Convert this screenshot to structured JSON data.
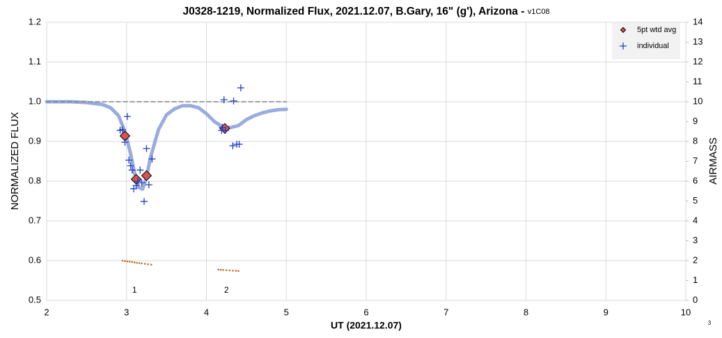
{
  "chart_data": {
    "type": "scatter",
    "title": "J0328-1219, Normalized Flux, 2021.12.07, B.Gary, 16\" (g'), Arizona - ",
    "version": "v1C08",
    "x_label": "UT (2021.12.07)",
    "y_label": "NORMALIZED FLUX",
    "y2_label": "AIRMASS",
    "footnote": "3",
    "xlim": [
      2,
      10
    ],
    "xticks": [
      2,
      3,
      4,
      5,
      6,
      7,
      8,
      9,
      10
    ],
    "ylim": [
      0.5,
      1.2
    ],
    "yticks": [
      0.5,
      0.6,
      0.7,
      0.8,
      0.9,
      {
        "value": 1,
        "label": "1.0"
      },
      1.1,
      1.2
    ],
    "y2lim": [
      0,
      14
    ],
    "y2ticks": [
      0,
      1,
      2,
      3,
      4,
      5,
      6,
      7,
      8,
      9,
      10,
      11,
      12,
      13,
      14
    ],
    "grid": true,
    "legend": "top-right",
    "series": [
      {
        "style": "line",
        "color": "#8ea3dd",
        "x": [
          2.0,
          2.3,
          2.5,
          2.7,
          2.8,
          2.9,
          2.95,
          3.0,
          3.05,
          3.1,
          3.15,
          3.2,
          3.25,
          3.3,
          3.4,
          3.5,
          3.6,
          3.7,
          3.8,
          3.9,
          4.0,
          4.1,
          4.2,
          4.3,
          4.4,
          4.5,
          4.6,
          4.7,
          4.8,
          4.9,
          5.0
        ],
        "values": [
          1.0,
          1.0,
          0.998,
          0.993,
          0.985,
          0.965,
          0.94,
          0.91,
          0.87,
          0.82,
          0.785,
          0.78,
          0.81,
          0.86,
          0.93,
          0.967,
          0.982,
          0.99,
          0.99,
          0.985,
          0.97,
          0.95,
          0.937,
          0.935,
          0.94,
          0.955,
          0.965,
          0.972,
          0.977,
          0.98,
          0.981
        ]
      },
      {
        "style": "dashed",
        "color": "#808080",
        "x": [
          2,
          5
        ],
        "values": [
          1,
          1
        ]
      },
      {
        "name": "5pt wtd avg",
        "marker": "diamond",
        "color": "#d9534f",
        "x": [
          2.98,
          3.12,
          3.25,
          4.23
        ],
        "values": [
          0.914,
          0.805,
          0.814,
          0.933
        ]
      },
      {
        "name": "individual",
        "marker": "plus",
        "color": "#1f3fbf",
        "x": [
          2.92,
          2.95,
          2.98,
          3.01,
          3.03,
          3.05,
          3.07,
          3.09,
          3.12,
          3.14,
          3.17,
          3.19,
          3.22,
          3.25,
          3.28,
          3.32,
          4.19,
          4.2,
          4.22,
          4.24,
          4.33,
          4.34,
          4.38,
          4.41,
          4.43
        ],
        "values": [
          0.928,
          0.93,
          0.898,
          0.963,
          0.853,
          0.839,
          0.828,
          0.781,
          0.789,
          0.8,
          0.828,
          0.796,
          0.749,
          0.882,
          0.791,
          0.856,
          0.928,
          0.935,
          1.005,
          0.928,
          0.889,
          1.002,
          0.893,
          0.893,
          1.035
        ]
      },
      {
        "axis": "y2",
        "marker": "dot",
        "color": "#c0702a",
        "x": [
          2.95,
          2.98,
          3.01,
          3.04,
          3.07,
          3.1,
          3.13,
          3.16,
          3.19,
          3.23,
          3.27,
          3.31,
          4.15,
          4.18,
          4.21,
          4.25,
          4.29,
          4.33,
          4.37,
          4.4
        ],
        "values": [
          2.0,
          1.98,
          1.96,
          1.95,
          1.93,
          1.91,
          1.89,
          1.88,
          1.86,
          1.84,
          1.82,
          1.8,
          1.55,
          1.54,
          1.53,
          1.52,
          1.51,
          1.5,
          1.49,
          1.48
        ]
      }
    ],
    "annotations": [
      {
        "text": "1",
        "x": 3.1
      },
      {
        "text": "2",
        "x": 4.25
      }
    ]
  }
}
